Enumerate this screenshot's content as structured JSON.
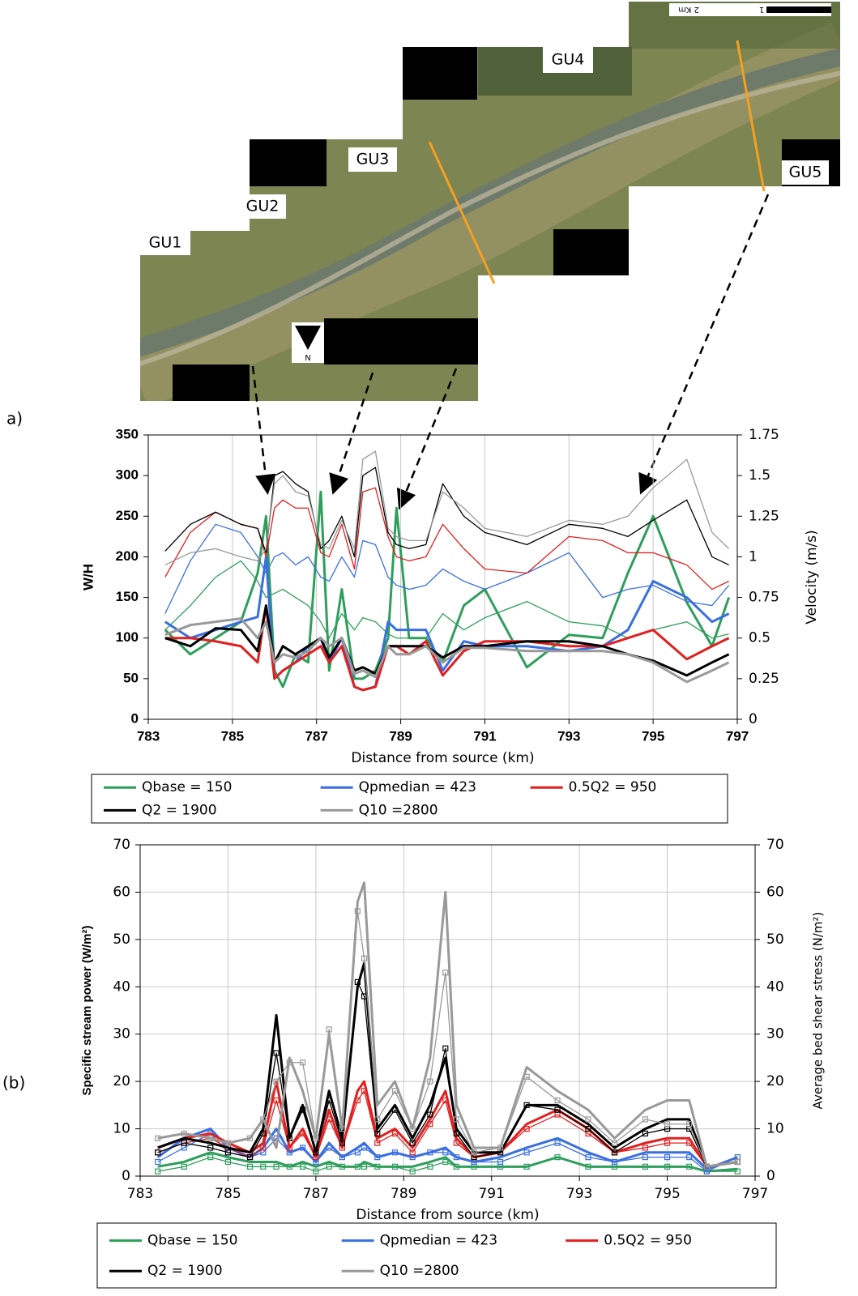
{
  "figure": {
    "label_a": "a)",
    "label_b": "(b)"
  },
  "map": {
    "labels": [
      "GU1",
      "GU2",
      "GU3",
      "GU4",
      "GU5"
    ],
    "scale_labels": [
      "2 Km",
      "1"
    ],
    "north_label": "N"
  },
  "chart_data": [
    {
      "type": "line",
      "y_label": "W/H",
      "y2_label": "Velocity (m/s)",
      "x_label": "Distance from source (km)",
      "xlim": [
        783,
        797
      ],
      "xticks": [
        783,
        785,
        787,
        789,
        791,
        793,
        795,
        797
      ],
      "ylim": [
        0,
        350
      ],
      "yticks": [
        0,
        50,
        100,
        150,
        200,
        250,
        300,
        350
      ],
      "y2lim": [
        0,
        1.75
      ],
      "y2ticks": [
        0,
        0.25,
        0.5,
        0.75,
        1,
        1.25,
        1.5,
        1.75
      ],
      "grid": "x",
      "thick": "y2",
      "x": [
        783.4,
        784.0,
        784.6,
        785.2,
        785.6,
        785.8,
        786.0,
        786.2,
        786.5,
        786.8,
        787.1,
        787.3,
        787.6,
        787.9,
        788.1,
        788.4,
        788.7,
        788.9,
        789.2,
        789.6,
        790.0,
        790.5,
        791.0,
        792.0,
        793.0,
        793.8,
        794.4,
        795.0,
        795.8,
        796.4,
        796.8
      ],
      "series": [
        {
          "name": "Qbase = 150",
          "color": "#2e9e5b",
          "values": [
            110,
            140,
            175,
            195,
            170,
            150,
            155,
            160,
            150,
            140,
            120,
            100,
            130,
            110,
            125,
            120,
            105,
            100,
            100,
            100,
            130,
            110,
            125,
            145,
            120,
            115,
            100,
            110,
            120,
            100,
            105
          ],
          "y2_values": [
            0.55,
            0.4,
            0.5,
            0.6,
            0.9,
            1.25,
            0.3,
            0.2,
            0.4,
            0.35,
            1.4,
            0.3,
            0.8,
            0.25,
            0.25,
            0.3,
            0.5,
            1.3,
            0.5,
            0.5,
            0.35,
            0.7,
            0.8,
            0.32,
            0.52,
            0.5,
            0.9,
            1.25,
            0.72,
            0.45,
            0.75
          ]
        },
        {
          "name": "Qpmedian = 423",
          "color": "#3a6fe0",
          "values": [
            130,
            195,
            240,
            230,
            200,
            180,
            200,
            205,
            190,
            200,
            175,
            170,
            200,
            175,
            220,
            215,
            175,
            165,
            160,
            165,
            185,
            170,
            160,
            180,
            205,
            150,
            160,
            165,
            145,
            140,
            165
          ],
          "y2_values": [
            0.6,
            0.5,
            0.55,
            0.6,
            0.63,
            1.0,
            0.25,
            0.3,
            0.35,
            0.45,
            0.5,
            0.35,
            0.5,
            0.2,
            0.18,
            0.2,
            0.6,
            0.55,
            0.55,
            0.55,
            0.3,
            0.48,
            0.45,
            0.45,
            0.42,
            0.45,
            0.55,
            0.85,
            0.75,
            0.6,
            0.65
          ]
        },
        {
          "name": "0.5Q2 = 950",
          "color": "#e02020",
          "values": [
            175,
            230,
            255,
            240,
            235,
            200,
            260,
            270,
            260,
            260,
            205,
            200,
            240,
            185,
            280,
            285,
            225,
            200,
            195,
            200,
            240,
            210,
            185,
            180,
            225,
            220,
            205,
            205,
            190,
            160,
            170
          ],
          "y2_values": [
            0.5,
            0.5,
            0.48,
            0.45,
            0.35,
            0.7,
            0.25,
            0.3,
            0.35,
            0.4,
            0.45,
            0.35,
            0.45,
            0.2,
            0.18,
            0.2,
            0.45,
            0.45,
            0.4,
            0.48,
            0.27,
            0.42,
            0.48,
            0.48,
            0.45,
            0.45,
            0.5,
            0.55,
            0.37,
            0.45,
            0.5
          ]
        },
        {
          "name": "Q2 = 1900",
          "color": "#000000",
          "values": [
            207,
            240,
            255,
            240,
            235,
            205,
            300,
            305,
            290,
            280,
            210,
            220,
            250,
            200,
            300,
            310,
            230,
            215,
            210,
            215,
            290,
            250,
            230,
            215,
            240,
            235,
            225,
            245,
            270,
            200,
            190
          ],
          "y2_values": [
            0.5,
            0.45,
            0.56,
            0.55,
            0.42,
            0.7,
            0.35,
            0.45,
            0.4,
            0.45,
            0.5,
            0.38,
            0.5,
            0.3,
            0.32,
            0.28,
            0.45,
            0.45,
            0.45,
            0.45,
            0.38,
            0.45,
            0.45,
            0.48,
            0.48,
            0.45,
            0.4,
            0.36,
            0.27,
            0.35,
            0.4
          ]
        },
        {
          "name": "Q10 =2800",
          "color": "#999999",
          "values": [
            190,
            205,
            210,
            200,
            195,
            210,
            290,
            300,
            280,
            275,
            215,
            210,
            245,
            210,
            320,
            330,
            235,
            225,
            220,
            220,
            280,
            260,
            235,
            225,
            245,
            240,
            250,
            285,
            320,
            230,
            210
          ],
          "y2_values": [
            0.52,
            0.58,
            0.6,
            0.62,
            0.5,
            0.6,
            0.35,
            0.4,
            0.38,
            0.42,
            0.5,
            0.45,
            0.5,
            0.28,
            0.3,
            0.26,
            0.45,
            0.4,
            0.4,
            0.45,
            0.35,
            0.44,
            0.44,
            0.42,
            0.42,
            0.42,
            0.4,
            0.35,
            0.23,
            0.3,
            0.35
          ]
        }
      ]
    },
    {
      "type": "line",
      "y_label": "Specific stream power (W/m²)",
      "y2_label": "Average bed shear stress (N/m²)",
      "x_label": "Distance from source (km)",
      "xlim": [
        783,
        797
      ],
      "xticks": [
        783,
        785,
        787,
        789,
        791,
        793,
        795,
        797
      ],
      "ylim": [
        0,
        70
      ],
      "yticks": [
        0,
        10,
        20,
        30,
        40,
        50,
        60,
        70
      ],
      "y2lim": [
        0,
        70
      ],
      "y2ticks": [
        0,
        10,
        20,
        30,
        40,
        50,
        60,
        70
      ],
      "grid": "both",
      "thick": "y",
      "markers": "y2",
      "x": [
        783.4,
        784.0,
        784.6,
        785.0,
        785.5,
        785.8,
        786.1,
        786.4,
        786.7,
        787.0,
        787.3,
        787.6,
        787.95,
        788.1,
        788.4,
        788.8,
        789.2,
        789.6,
        789.95,
        790.2,
        790.6,
        791.2,
        791.8,
        792.5,
        793.2,
        793.8,
        794.5,
        795.0,
        795.5,
        795.9,
        796.6
      ],
      "series": [
        {
          "name": "Qbase = 150",
          "color": "#2e9e5b",
          "values": [
            2,
            3,
            5,
            4,
            3,
            3,
            3,
            2,
            3,
            2,
            3,
            2,
            2,
            3,
            2,
            2,
            2,
            3,
            4,
            2,
            2,
            2,
            2,
            4,
            2,
            2,
            2,
            2,
            2,
            1,
            1.5
          ],
          "y2_values": [
            1,
            2,
            4,
            3,
            2,
            2,
            2,
            2,
            2,
            1,
            2,
            2,
            2,
            2,
            2,
            2,
            1,
            2,
            3,
            2,
            2,
            2,
            2,
            4,
            2,
            2,
            2,
            2,
            2,
            1,
            1
          ]
        },
        {
          "name": "Qpmedian = 423",
          "color": "#3a6fe0",
          "values": [
            4,
            8,
            10,
            6,
            4,
            6,
            10,
            5,
            6,
            3,
            7,
            4,
            6,
            7,
            4,
            5,
            4,
            5,
            6,
            4,
            3,
            4,
            6,
            8,
            5,
            3,
            5,
            5,
            5,
            1.5,
            4
          ],
          "y2_values": [
            3,
            6,
            9,
            5,
            4,
            5,
            8,
            5,
            6,
            3,
            6,
            4,
            5,
            6,
            4,
            5,
            4,
            5,
            5,
            4,
            3,
            3,
            5,
            7,
            4,
            3,
            4,
            4,
            4,
            1,
            4
          ]
        },
        {
          "name": "0.5Q2 = 950",
          "color": "#e02020",
          "values": [
            6,
            8,
            9,
            7,
            5,
            7,
            20,
            6,
            10,
            4,
            14,
            6,
            18,
            20,
            8,
            10,
            6,
            12,
            18,
            8,
            4,
            5,
            11,
            14,
            10,
            5,
            7,
            8,
            8,
            2,
            3
          ],
          "y2_values": [
            5,
            7,
            8,
            6,
            4,
            6,
            16,
            6,
            9,
            4,
            12,
            6,
            16,
            18,
            7,
            9,
            5,
            11,
            16,
            7,
            4,
            5,
            10,
            13,
            9,
            5,
            6,
            7,
            7,
            2,
            3
          ]
        },
        {
          "name": "Q2 = 1900",
          "color": "#000000",
          "values": [
            6,
            8,
            7,
            6,
            5,
            10,
            34,
            8,
            15,
            5,
            18,
            8,
            40,
            45,
            10,
            15,
            8,
            15,
            25,
            10,
            5,
            5,
            15,
            15,
            11,
            6,
            10,
            12,
            12,
            2,
            3
          ],
          "y2_values": [
            5,
            7,
            6,
            5,
            4,
            9,
            26,
            8,
            14,
            5,
            16,
            7,
            41,
            38,
            9,
            14,
            7,
            13,
            27,
            9,
            4,
            5,
            15,
            14,
            10,
            5,
            9,
            10,
            10,
            2,
            3
          ]
        },
        {
          "name": "Q10 =2800",
          "color": "#999999",
          "values": [
            8,
            9,
            8,
            7,
            8,
            12,
            6,
            25,
            18,
            8,
            30,
            10,
            58,
            62,
            15,
            20,
            10,
            25,
            60,
            15,
            6,
            6,
            23,
            18,
            14,
            8,
            14,
            16,
            16,
            2,
            3
          ],
          "y2_values": [
            8,
            9,
            8,
            7,
            8,
            12,
            20,
            24,
            24,
            8,
            31,
            10,
            56,
            46,
            12,
            18,
            10,
            20,
            43,
            12,
            5,
            6,
            21,
            16,
            12,
            7,
            12,
            11,
            11,
            2,
            3
          ]
        }
      ]
    }
  ]
}
